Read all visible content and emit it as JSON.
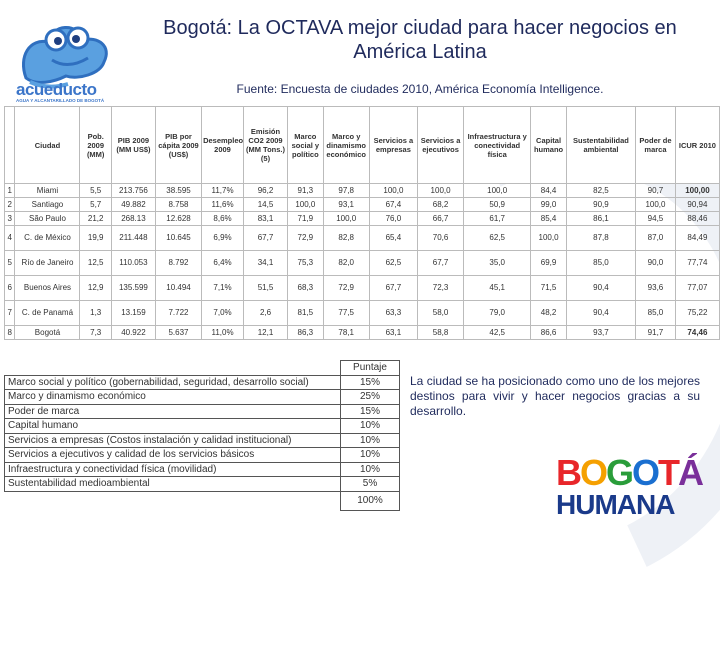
{
  "title": "Bogotá: La OCTAVA mejor ciudad para hacer negocios en América Latina",
  "source": {
    "label": "Fuente",
    "text": ": Encuesta de ciudades 2010, América Economía Intelligence."
  },
  "logo": {
    "word": "acueducto",
    "sub": "AGUA Y ALCANTARILLADO DE BOGOTÁ"
  },
  "table": {
    "headers": [
      "",
      "Ciudad",
      "Pob. 2009 (MM)",
      "PIB 2009 (MM US$)",
      "PIB por cápita 2009 (US$)",
      "Desempleo 2009",
      "Emisión CO2 2009 (MM Tons.) (5)",
      "Marco social y político",
      "Marco y dinamismo económico",
      "Servicios a empresas",
      "Servicios a ejecutivos",
      "Infraestructura y conectividad física",
      "Capital humano",
      "Sustentabilidad ambiental",
      "Poder de marca",
      "ICUR 2010"
    ],
    "rows": [
      [
        "1",
        "Miami",
        "5,5",
        "213.756",
        "38.595",
        "11,7%",
        "96,2",
        "91,3",
        "97,8",
        "100,0",
        "100,0",
        "100,0",
        "84,4",
        "82,5",
        "90,7",
        "100,00"
      ],
      [
        "2",
        "Santiago",
        "5,7",
        "49.882",
        "8.758",
        "11,6%",
        "14,5",
        "100,0",
        "93,1",
        "67,4",
        "68,2",
        "50,9",
        "99,0",
        "90,9",
        "100,0",
        "90,94"
      ],
      [
        "3",
        "São Paulo",
        "21,2",
        "268.13",
        "12.628",
        "8,6%",
        "83,1",
        "71,9",
        "100,0",
        "76,0",
        "66,7",
        "61,7",
        "85,4",
        "86,1",
        "94,5",
        "88,46"
      ],
      [
        "4",
        "C. de México",
        "19,9",
        "211.448",
        "10.645",
        "6,9%",
        "67,7",
        "72,9",
        "82,8",
        "65,4",
        "70,6",
        "62,5",
        "100,0",
        "87,8",
        "87,0",
        "84,49"
      ],
      [
        "5",
        "Río de Janeiro",
        "12,5",
        "110.053",
        "8.792",
        "6,4%",
        "34,1",
        "75,3",
        "82,0",
        "62,5",
        "67,7",
        "35,0",
        "69,9",
        "85,0",
        "90,0",
        "77,74"
      ],
      [
        "6",
        "Buenos Aires",
        "12,9",
        "135.599",
        "10.494",
        "7,1%",
        "51,5",
        "68,3",
        "72,9",
        "67,7",
        "72,3",
        "45,1",
        "71,5",
        "90,4",
        "93,6",
        "77,07"
      ],
      [
        "7",
        "C. de Panamá",
        "1,3",
        "13.159",
        "7.722",
        "7,0%",
        "2,6",
        "81,5",
        "77,5",
        "63,3",
        "58,0",
        "79,0",
        "48,2",
        "90,4",
        "85,0",
        "75,22"
      ],
      [
        "8",
        "Bogotá",
        "7,3",
        "40.922",
        "5.637",
        "11,0%",
        "12,1",
        "86,3",
        "78,1",
        "63,1",
        "58,8",
        "42,5",
        "86,6",
        "93,7",
        "91,7",
        "74,46"
      ]
    ]
  },
  "weights": {
    "header": "Puntaje",
    "rows": [
      {
        "label": "Marco social y político (gobernabilidad, seguridad, desarrollo social)",
        "value": "15%"
      },
      {
        "label": "Marco y dinamismo económico",
        "value": "25%"
      },
      {
        "label": "Poder de marca",
        "value": "15%"
      },
      {
        "label": "Capital humano",
        "value": "10%"
      },
      {
        "label": "Servicios a empresas (Costos instalación y calidad institucional)",
        "value": "10%"
      },
      {
        "label": "Servicios a ejecutivos y calidad de los servicios básicos",
        "value": "10%"
      },
      {
        "label": "Infraestructura y conectividad física (movilidad)",
        "value": "10%"
      },
      {
        "label": "Sustentabilidad medioambiental",
        "value": "5%"
      }
    ],
    "total": "100%"
  },
  "note": "La ciudad se ha posicionado como uno de los mejores destinos para vivir y hacer negocios gracias a su desarrollo.",
  "bogota_logo": {
    "top": "BOGOTÁ",
    "bottom": "HUMANA"
  },
  "colors": {
    "title": "#1f2a5c",
    "logo_blue": "#3b75c9"
  }
}
